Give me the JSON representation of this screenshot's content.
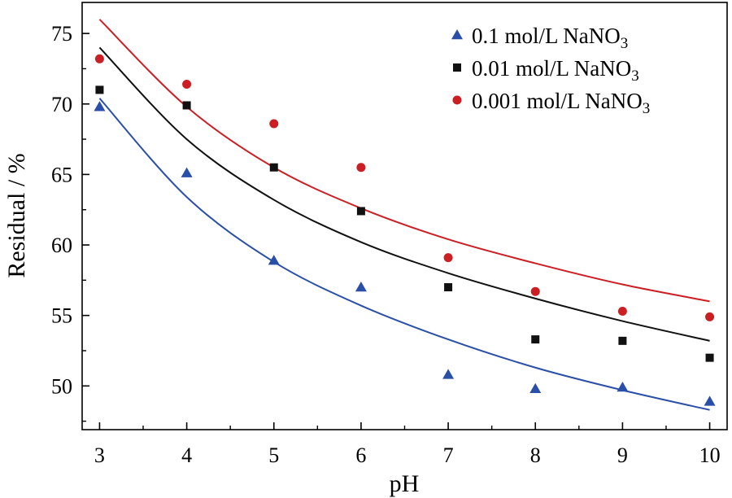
{
  "chart_data": {
    "type": "scatter",
    "xlabel": "pH",
    "ylabel": "Residual / %",
    "xlim": [
      2.8,
      10.2
    ],
    "ylim": [
      46.9,
      77.2
    ],
    "xticks": [
      3,
      4,
      5,
      6,
      7,
      8,
      9,
      10
    ],
    "yticks": [
      50,
      55,
      60,
      65,
      70,
      75
    ],
    "grid": false,
    "legend_position": "top-right",
    "x": [
      3,
      4,
      5,
      6,
      7,
      8,
      9,
      10
    ],
    "series": [
      {
        "name": "0.1 mol/L NaNO3",
        "name_main": "0.1 mol/L NaNO",
        "name_sub": "3",
        "marker": "triangle",
        "color": "#2a4fa8",
        "values": [
          69.8,
          65.1,
          58.9,
          57.0,
          50.8,
          49.8,
          49.9,
          48.9
        ],
        "fit": [
          70.4,
          63.4,
          58.8,
          55.7,
          53.3,
          51.3,
          49.7,
          48.3
        ]
      },
      {
        "name": "0.01 mol/L NaNO3",
        "name_main": "0.01 mol/L NaNO",
        "name_sub": "3",
        "marker": "square",
        "color": "#111111",
        "values": [
          71.0,
          69.9,
          65.5,
          62.4,
          57.0,
          53.3,
          53.2,
          52.0
        ],
        "fit": [
          74.0,
          67.5,
          63.2,
          60.2,
          58.0,
          56.2,
          54.6,
          53.2
        ]
      },
      {
        "name": "0.001 mol/L NaNO3",
        "name_main": "0.001 mol/L NaNO",
        "name_sub": "3",
        "marker": "circle",
        "color": "#cc1f24",
        "values": [
          73.2,
          71.4,
          68.6,
          65.5,
          59.1,
          56.7,
          55.3,
          54.9
        ],
        "fit": [
          76.0,
          69.8,
          65.5,
          62.6,
          60.4,
          58.7,
          57.2,
          56.0
        ]
      }
    ]
  }
}
